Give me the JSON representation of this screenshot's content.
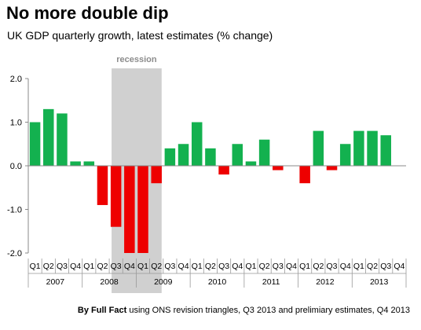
{
  "header": {
    "title": "No more double dip",
    "subtitle": "UK GDP quarterly growth, latest estimates (% change)"
  },
  "footer": {
    "source_prefix": "By Full Fact",
    "source_rest": " using ONS revision triangles, Q3 2013 and prelimiary estimates, Q4 2013"
  },
  "colors": {
    "positive": "#13b14f",
    "negative": "#ee0000",
    "recession_band": "#d0d0d0",
    "recession_label": "#8c8c8c"
  },
  "chart_data": {
    "type": "bar",
    "title": "No more double dip",
    "subtitle": "UK GDP quarterly growth, latest estimates (% change)",
    "xlabel": "",
    "ylabel": "",
    "ylim": [
      -2.0,
      2.0
    ],
    "yticks": [
      "2.0",
      "1.0",
      "0.0",
      "-1.0",
      "-2.0"
    ],
    "grid": false,
    "annotations": [
      {
        "text": "recession",
        "from_index": 6,
        "to_index": 10
      }
    ],
    "categories": [
      {
        "quarter": "Q1",
        "year": "2007"
      },
      {
        "quarter": "Q2",
        "year": "2007"
      },
      {
        "quarter": "Q3",
        "year": "2007"
      },
      {
        "quarter": "Q4",
        "year": "2007"
      },
      {
        "quarter": "Q1",
        "year": "2008"
      },
      {
        "quarter": "Q2",
        "year": "2008"
      },
      {
        "quarter": "Q3",
        "year": "2008"
      },
      {
        "quarter": "Q4",
        "year": "2008"
      },
      {
        "quarter": "Q1",
        "year": "2009"
      },
      {
        "quarter": "Q2",
        "year": "2009"
      },
      {
        "quarter": "Q3",
        "year": "2009"
      },
      {
        "quarter": "Q4",
        "year": "2009"
      },
      {
        "quarter": "Q1",
        "year": "2010"
      },
      {
        "quarter": "Q2",
        "year": "2010"
      },
      {
        "quarter": "Q3",
        "year": "2010"
      },
      {
        "quarter": "Q4",
        "year": "2010"
      },
      {
        "quarter": "Q1",
        "year": "2011"
      },
      {
        "quarter": "Q2",
        "year": "2011"
      },
      {
        "quarter": "Q3",
        "year": "2011"
      },
      {
        "quarter": "Q4",
        "year": "2011"
      },
      {
        "quarter": "Q1",
        "year": "2012"
      },
      {
        "quarter": "Q2",
        "year": "2012"
      },
      {
        "quarter": "Q3",
        "year": "2012"
      },
      {
        "quarter": "Q4",
        "year": "2012"
      },
      {
        "quarter": "Q1",
        "year": "2013"
      },
      {
        "quarter": "Q2",
        "year": "2013"
      },
      {
        "quarter": "Q3",
        "year": "2013"
      },
      {
        "quarter": "Q4",
        "year": "2013"
      }
    ],
    "values": [
      1.0,
      1.3,
      1.2,
      0.1,
      0.1,
      -0.9,
      -1.4,
      -2.0,
      -2.0,
      -0.4,
      0.4,
      0.5,
      1.0,
      0.4,
      -0.2,
      0.5,
      0.1,
      0.6,
      -0.1,
      0.0,
      -0.4,
      0.8,
      -0.1,
      0.5,
      0.8,
      0.8,
      0.7,
      0.0
    ],
    "year_labels": [
      "2007",
      "2008",
      "2009",
      "2010",
      "2011",
      "2012",
      "2013"
    ]
  }
}
